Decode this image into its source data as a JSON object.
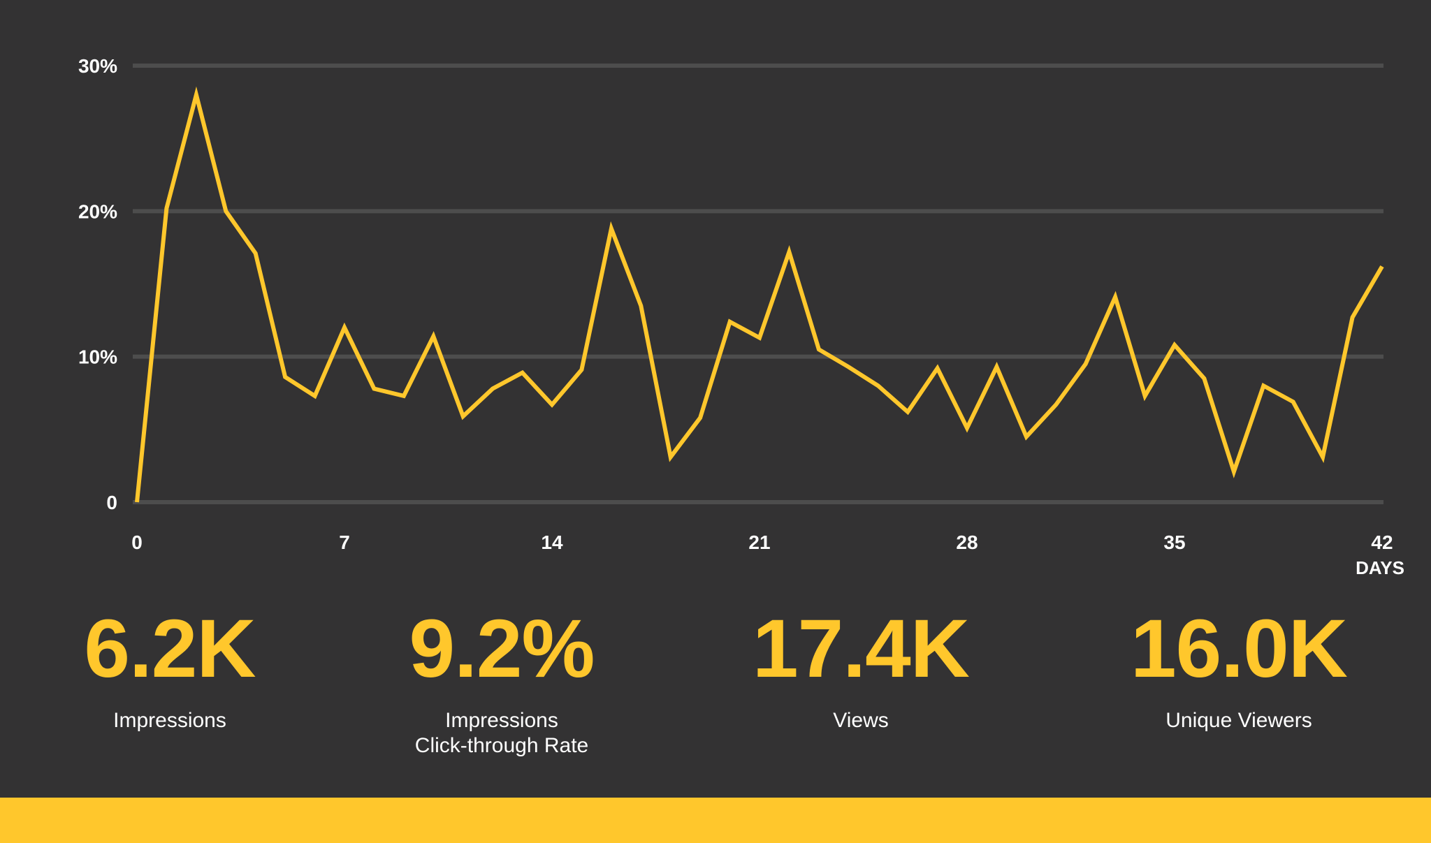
{
  "colors": {
    "background": "#333233",
    "gridline": "#4d4d4d",
    "series": "#ffc72c",
    "text": "#ffffff",
    "accent_band": "#ffc72c"
  },
  "chart_data": {
    "type": "line",
    "title": "",
    "xlabel": "DAYS",
    "ylabel": "",
    "xlim": [
      0,
      42
    ],
    "ylim": [
      0,
      30
    ],
    "grid": true,
    "x_ticks": [
      0,
      7,
      14,
      21,
      28,
      35,
      42
    ],
    "x_tick_labels": [
      "0",
      "7",
      "14",
      "21",
      "28",
      "35",
      "42"
    ],
    "y_ticks": [
      0,
      10,
      20,
      30
    ],
    "y_tick_labels": [
      "0",
      "10%",
      "20%",
      "30%"
    ],
    "series": [
      {
        "x": [
          0,
          1,
          2,
          3,
          4,
          5,
          6,
          7,
          8,
          9,
          10,
          11,
          12,
          13,
          14,
          15,
          16,
          17,
          18,
          19,
          20,
          21,
          22,
          23,
          24,
          25,
          26,
          27,
          28,
          29,
          30,
          31,
          32,
          33,
          34,
          35,
          36,
          37,
          38,
          39,
          40,
          41,
          42
        ],
        "values": [
          0,
          20.2,
          28,
          20,
          17.1,
          8.6,
          7.3,
          12,
          7.8,
          7.3,
          11.4,
          5.9,
          7.8,
          8.9,
          6.7,
          9.1,
          18.8,
          13.5,
          3.1,
          5.8,
          12.4,
          11.3,
          17.2,
          10.5,
          9.3,
          8,
          6.2,
          9.2,
          5.1,
          9.3,
          4.5,
          6.7,
          9.5,
          14.1,
          7.3,
          10.8,
          8.5,
          2.1,
          8,
          6.9,
          3.1,
          12.7,
          16.2
        ]
      }
    ]
  },
  "stats": [
    {
      "value": "6.2K",
      "label": "Impressions"
    },
    {
      "value": "9.2%",
      "label": "Impressions\nClick-through Rate"
    },
    {
      "value": "17.4K",
      "label": "Views"
    },
    {
      "value": "16.0K",
      "label": "Unique Viewers"
    }
  ]
}
